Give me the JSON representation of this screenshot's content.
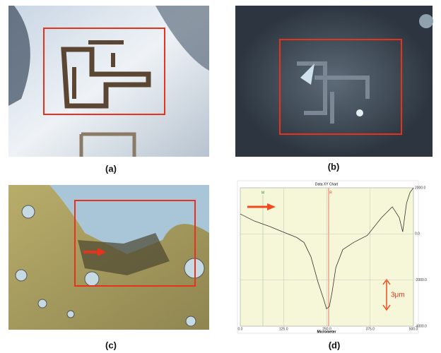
{
  "panel_labels": [
    "(a)",
    "(b)",
    "(c)",
    "(d)"
  ],
  "chart_data": {
    "type": "line",
    "title": "Data XY Chart",
    "x_label": "Micrometer",
    "annotations": [
      "3μm",
      "M",
      "R"
    ],
    "x": [
      0,
      41,
      82,
      122,
      163,
      184,
      204,
      224,
      241,
      249,
      257,
      265,
      276,
      296,
      327,
      367,
      408,
      439,
      459,
      469,
      480,
      490,
      500
    ],
    "series": [
      {
        "color": "#333333",
        "values": [
          865,
          556,
          340,
          93,
          -155,
          -371,
          -989,
          -2071,
          -2844,
          -3246,
          -3153,
          -2535,
          -1453,
          -680,
          -371,
          -62,
          711,
          1175,
          711,
          93,
          1329,
          1793,
          2000
        ]
      }
    ],
    "xlim": [
      0,
      500
    ],
    "xticks": [
      {
        "value": 0,
        "label": "0.0"
      },
      {
        "value": 125,
        "label": "125.0"
      },
      {
        "value": 250,
        "label": "250.0"
      },
      {
        "value": 375,
        "label": "375.0"
      },
      {
        "value": 500,
        "label": "500.0"
      }
    ],
    "ylim": [
      -4000,
      2000
    ],
    "yticks": [
      {
        "value": -4000,
        "label": "-4000.0"
      },
      {
        "value": -2000,
        "label": "-2000.0"
      },
      {
        "value": 0,
        "label": "0.0"
      },
      {
        "value": 2000,
        "label": "2000.0"
      }
    ],
    "grid": true
  }
}
